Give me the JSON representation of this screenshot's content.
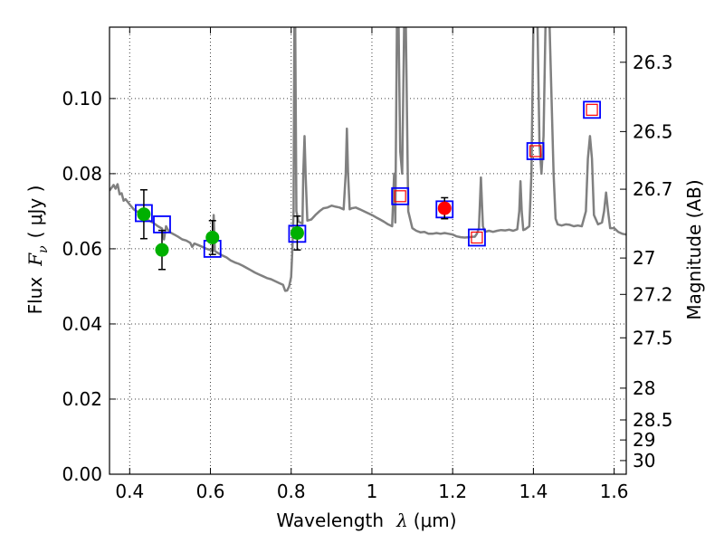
{
  "chart_data": {
    "type": "scatter",
    "xlabel": {
      "prefix": "Wavelength",
      "symbol": "λ",
      "unit": "(μm)"
    },
    "ylabel": {
      "prefix": "Flux",
      "symbol": "F",
      "subscript": "ν",
      "unit": "( μJy )"
    },
    "y2label": "Magnitude (AB)",
    "xlim": [
      0.35,
      1.63
    ],
    "ylim": [
      0.0,
      0.119
    ],
    "grid": true,
    "x_ticks": [
      0.4,
      0.6,
      0.8,
      1.0,
      1.2,
      1.4,
      1.6
    ],
    "x_tick_labels": [
      "0.4",
      "0.6",
      "0.8",
      "1",
      "1.2",
      "1.4",
      "1.6"
    ],
    "y_ticks": [
      0.0,
      0.02,
      0.04,
      0.06,
      0.08,
      0.1
    ],
    "y_tick_labels": [
      "0.00",
      "0.02",
      "0.04",
      "0.06",
      "0.08",
      "0.10"
    ],
    "magnitude_ticks": [
      {
        "label": "26.3",
        "mag": 26.3
      },
      {
        "label": "26.5",
        "mag": 26.5
      },
      {
        "label": "26.7",
        "mag": 26.7
      },
      {
        "label": "27",
        "mag": 27.0
      },
      {
        "label": "27.2",
        "mag": 27.2
      },
      {
        "label": "27.5",
        "mag": 27.5
      },
      {
        "label": "28",
        "mag": 28.0
      },
      {
        "label": "28.5",
        "mag": 28.5
      },
      {
        "label": "29",
        "mag": 29.0
      },
      {
        "label": "30",
        "mag": 30.0
      }
    ],
    "series": [
      {
        "kind": "model-spectrum",
        "color": "#808080",
        "points": [
          [
            0.35,
            0.0755
          ],
          [
            0.36,
            0.077
          ],
          [
            0.365,
            0.076
          ],
          [
            0.37,
            0.0772
          ],
          [
            0.375,
            0.0745
          ],
          [
            0.38,
            0.0748
          ],
          [
            0.385,
            0.0728
          ],
          [
            0.39,
            0.0732
          ],
          [
            0.4,
            0.0718
          ],
          [
            0.41,
            0.0705
          ],
          [
            0.42,
            0.0698
          ],
          [
            0.43,
            0.069
          ],
          [
            0.44,
            0.068
          ],
          [
            0.45,
            0.0674
          ],
          [
            0.46,
            0.0668
          ],
          [
            0.47,
            0.066
          ],
          [
            0.48,
            0.0654
          ],
          [
            0.485,
            0.0625
          ],
          [
            0.49,
            0.066
          ],
          [
            0.495,
            0.065
          ],
          [
            0.5,
            0.0644
          ],
          [
            0.51,
            0.0638
          ],
          [
            0.52,
            0.0632
          ],
          [
            0.53,
            0.0625
          ],
          [
            0.54,
            0.0622
          ],
          [
            0.55,
            0.0616
          ],
          [
            0.555,
            0.0605
          ],
          [
            0.56,
            0.0614
          ],
          [
            0.57,
            0.061
          ],
          [
            0.58,
            0.0605
          ],
          [
            0.59,
            0.06
          ],
          [
            0.6,
            0.0597
          ],
          [
            0.605,
            0.0594
          ],
          [
            0.608,
            0.069
          ],
          [
            0.611,
            0.0594
          ],
          [
            0.62,
            0.0588
          ],
          [
            0.63,
            0.0582
          ],
          [
            0.64,
            0.0577
          ],
          [
            0.65,
            0.0569
          ],
          [
            0.66,
            0.0564
          ],
          [
            0.67,
            0.056
          ],
          [
            0.68,
            0.0555
          ],
          [
            0.69,
            0.0549
          ],
          [
            0.7,
            0.0543
          ],
          [
            0.71,
            0.0537
          ],
          [
            0.72,
            0.0532
          ],
          [
            0.73,
            0.0527
          ],
          [
            0.74,
            0.0522
          ],
          [
            0.75,
            0.0519
          ],
          [
            0.76,
            0.0514
          ],
          [
            0.77,
            0.0509
          ],
          [
            0.78,
            0.0504
          ],
          [
            0.785,
            0.0488
          ],
          [
            0.79,
            0.0489
          ],
          [
            0.795,
            0.05
          ],
          [
            0.8,
            0.0525
          ],
          [
            0.803,
            0.06
          ],
          [
            0.806,
            0.07
          ],
          [
            0.808,
            0.12
          ],
          [
            0.81,
            0.12
          ],
          [
            0.813,
            0.07
          ],
          [
            0.818,
            0.0672
          ],
          [
            0.823,
            0.067
          ],
          [
            0.828,
            0.0667
          ],
          [
            0.83,
            0.08
          ],
          [
            0.833,
            0.09
          ],
          [
            0.836,
            0.079
          ],
          [
            0.84,
            0.0675
          ],
          [
            0.85,
            0.0678
          ],
          [
            0.86,
            0.069
          ],
          [
            0.87,
            0.07
          ],
          [
            0.88,
            0.0708
          ],
          [
            0.89,
            0.071
          ],
          [
            0.9,
            0.0715
          ],
          [
            0.91,
            0.0712
          ],
          [
            0.92,
            0.071
          ],
          [
            0.93,
            0.0705
          ],
          [
            0.935,
            0.08
          ],
          [
            0.938,
            0.092
          ],
          [
            0.941,
            0.08
          ],
          [
            0.945,
            0.0705
          ],
          [
            0.95,
            0.0708
          ],
          [
            0.96,
            0.071
          ],
          [
            0.97,
            0.0705
          ],
          [
            0.98,
            0.07
          ],
          [
            0.99,
            0.0695
          ],
          [
            1.0,
            0.069
          ],
          [
            1.01,
            0.0684
          ],
          [
            1.02,
            0.0678
          ],
          [
            1.03,
            0.0672
          ],
          [
            1.04,
            0.0665
          ],
          [
            1.05,
            0.066
          ],
          [
            1.055,
            0.08
          ],
          [
            1.058,
            0.067
          ],
          [
            1.062,
            0.12
          ],
          [
            1.066,
            0.12
          ],
          [
            1.07,
            0.086
          ],
          [
            1.075,
            0.08
          ],
          [
            1.08,
            0.12
          ],
          [
            1.084,
            0.12
          ],
          [
            1.09,
            0.07
          ],
          [
            1.1,
            0.0655
          ],
          [
            1.11,
            0.0648
          ],
          [
            1.12,
            0.0644
          ],
          [
            1.13,
            0.0645
          ],
          [
            1.14,
            0.064
          ],
          [
            1.15,
            0.064
          ],
          [
            1.16,
            0.0642
          ],
          [
            1.17,
            0.064
          ],
          [
            1.18,
            0.0642
          ],
          [
            1.19,
            0.064
          ],
          [
            1.2,
            0.0638
          ],
          [
            1.21,
            0.0633
          ],
          [
            1.22,
            0.0631
          ],
          [
            1.23,
            0.063
          ],
          [
            1.24,
            0.0631
          ],
          [
            1.25,
            0.0632
          ],
          [
            1.255,
            0.0632
          ],
          [
            1.26,
            0.064
          ],
          [
            1.265,
            0.0655
          ],
          [
            1.27,
            0.079
          ],
          [
            1.275,
            0.066
          ],
          [
            1.28,
            0.0645
          ],
          [
            1.29,
            0.0648
          ],
          [
            1.3,
            0.0645
          ],
          [
            1.31,
            0.0648
          ],
          [
            1.32,
            0.065
          ],
          [
            1.33,
            0.0649
          ],
          [
            1.34,
            0.0651
          ],
          [
            1.35,
            0.0648
          ],
          [
            1.36,
            0.0652
          ],
          [
            1.365,
            0.07
          ],
          [
            1.368,
            0.078
          ],
          [
            1.371,
            0.07
          ],
          [
            1.375,
            0.065
          ],
          [
            1.38,
            0.0652
          ],
          [
            1.39,
            0.066
          ],
          [
            1.395,
            0.08
          ],
          [
            1.4,
            0.12
          ],
          [
            1.41,
            0.12
          ],
          [
            1.415,
            0.088
          ],
          [
            1.42,
            0.08
          ],
          [
            1.425,
            0.09
          ],
          [
            1.43,
            0.12
          ],
          [
            1.44,
            0.12
          ],
          [
            1.45,
            0.08
          ],
          [
            1.455,
            0.068
          ],
          [
            1.46,
            0.0665
          ],
          [
            1.47,
            0.0662
          ],
          [
            1.48,
            0.0665
          ],
          [
            1.49,
            0.0664
          ],
          [
            1.5,
            0.066
          ],
          [
            1.51,
            0.0662
          ],
          [
            1.52,
            0.066
          ],
          [
            1.53,
            0.07
          ],
          [
            1.535,
            0.084
          ],
          [
            1.54,
            0.09
          ],
          [
            1.545,
            0.084
          ],
          [
            1.55,
            0.069
          ],
          [
            1.56,
            0.0665
          ],
          [
            1.57,
            0.067
          ],
          [
            1.575,
            0.07
          ],
          [
            1.58,
            0.075
          ],
          [
            1.585,
            0.07
          ],
          [
            1.59,
            0.0655
          ],
          [
            1.6,
            0.0655
          ],
          [
            1.61,
            0.0645
          ],
          [
            1.62,
            0.064
          ],
          [
            1.63,
            0.0638
          ]
        ]
      },
      {
        "kind": "model-bands",
        "marker": "open-square",
        "color": "#0000ff",
        "points": [
          {
            "x": 0.435,
            "y": 0.0695
          },
          {
            "x": 0.48,
            "y": 0.0665
          },
          {
            "x": 0.605,
            "y": 0.06
          },
          {
            "x": 0.815,
            "y": 0.064
          },
          {
            "x": 1.07,
            "y": 0.074
          },
          {
            "x": 1.18,
            "y": 0.0705
          },
          {
            "x": 1.26,
            "y": 0.063
          },
          {
            "x": 1.405,
            "y": 0.086
          },
          {
            "x": 1.545,
            "y": 0.097
          }
        ]
      },
      {
        "kind": "observed-upper",
        "marker": "open-square",
        "color": "#ff0000",
        "points": [
          {
            "x": 1.07,
            "y": 0.074
          },
          {
            "x": 1.26,
            "y": 0.063
          },
          {
            "x": 1.405,
            "y": 0.086
          },
          {
            "x": 1.545,
            "y": 0.097
          }
        ]
      },
      {
        "kind": "observed-green",
        "marker": "filled-circle",
        "color": "#00b000",
        "points": [
          {
            "x": 0.435,
            "y": 0.0692,
            "err": 0.0065
          },
          {
            "x": 0.48,
            "y": 0.0597,
            "err": 0.0052
          },
          {
            "x": 0.605,
            "y": 0.063,
            "err": 0.0045
          },
          {
            "x": 0.815,
            "y": 0.0642,
            "err": 0.0045
          }
        ]
      },
      {
        "kind": "observed-red",
        "marker": "filled-circle",
        "color": "#ff0000",
        "points": [
          {
            "x": 1.18,
            "y": 0.0708,
            "err": 0.0028
          }
        ]
      }
    ]
  }
}
